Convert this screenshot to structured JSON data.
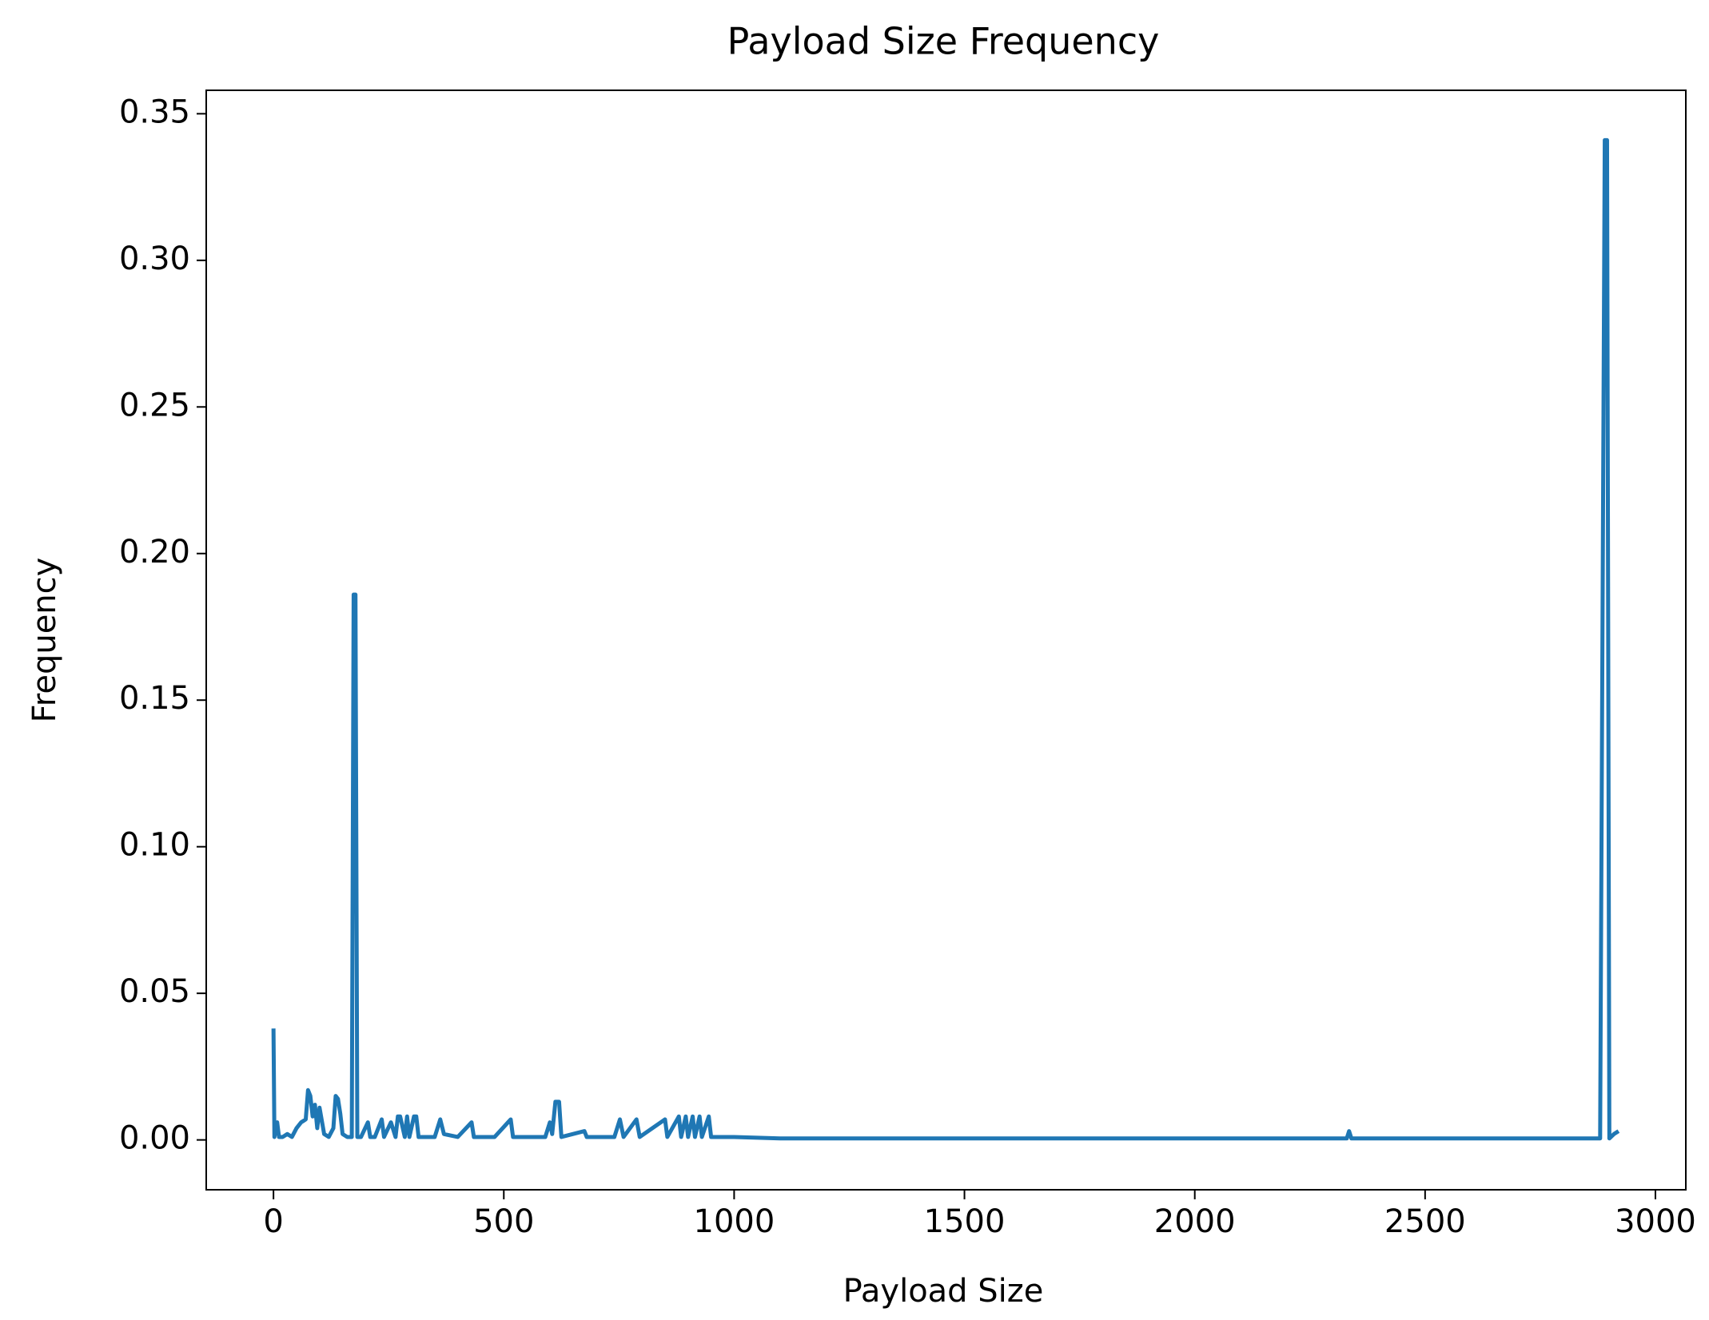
{
  "chart_data": {
    "type": "line",
    "title": "Payload Size Frequency",
    "x_label": "Payload Size",
    "y_label": "Frequency",
    "color": "#1f77b4",
    "grid": false,
    "xlim": [
      -146,
      3066
    ],
    "ylim": [
      -0.017,
      0.358
    ],
    "xticks": [
      0,
      500,
      1000,
      1500,
      2000,
      2500,
      3000
    ],
    "yticks": [
      {
        "value": 0,
        "label": "0.00"
      },
      {
        "value": 0.05,
        "label": "0.05"
      },
      {
        "value": 0.1,
        "label": "0.10"
      },
      {
        "value": 0.15,
        "label": "0.15"
      },
      {
        "value": 0.2,
        "label": "0.20"
      },
      {
        "value": 0.25,
        "label": "0.25"
      },
      {
        "value": 0.3,
        "label": "0.30"
      },
      {
        "value": 0.35,
        "label": "0.35"
      }
    ],
    "x": [
      0,
      2,
      8,
      12,
      20,
      30,
      40,
      50,
      60,
      70,
      75,
      80,
      85,
      90,
      95,
      100,
      110,
      120,
      130,
      135,
      140,
      145,
      150,
      160,
      170,
      174,
      178,
      182,
      190,
      205,
      210,
      220,
      235,
      240,
      255,
      265,
      270,
      275,
      285,
      290,
      295,
      305,
      310,
      315,
      350,
      362,
      370,
      400,
      430,
      435,
      480,
      515,
      520,
      590,
      600,
      605,
      612,
      620,
      625,
      675,
      680,
      740,
      752,
      760,
      788,
      795,
      850,
      855,
      880,
      885,
      895,
      900,
      910,
      915,
      925,
      930,
      945,
      950,
      1000,
      1100,
      1300,
      1500,
      1700,
      1900,
      2100,
      2330,
      2335,
      2340,
      2500,
      2700,
      2880,
      2890,
      2895,
      2900,
      2910,
      2920
    ],
    "values": [
      0.038,
      0.001,
      0.006,
      0.001,
      0.001,
      0.002,
      0.001,
      0.004,
      0.006,
      0.007,
      0.017,
      0.015,
      0.008,
      0.012,
      0.004,
      0.011,
      0.002,
      0.001,
      0.004,
      0.015,
      0.014,
      0.009,
      0.002,
      0.001,
      0.001,
      0.186,
      0.186,
      0.001,
      0.001,
      0.006,
      0.001,
      0.001,
      0.007,
      0.001,
      0.006,
      0.001,
      0.008,
      0.008,
      0.001,
      0.008,
      0.001,
      0.008,
      0.008,
      0.001,
      0.001,
      0.007,
      0.002,
      0.001,
      0.006,
      0.001,
      0.001,
      0.007,
      0.001,
      0.001,
      0.006,
      0.002,
      0.013,
      0.013,
      0.001,
      0.003,
      0.001,
      0.001,
      0.007,
      0.001,
      0.007,
      0.001,
      0.007,
      0.001,
      0.008,
      0.001,
      0.008,
      0.001,
      0.008,
      0.001,
      0.008,
      0.001,
      0.008,
      0.001,
      0.001,
      0.0005,
      0.0005,
      0.0005,
      0.0005,
      0.0005,
      0.0005,
      0.0005,
      0.003,
      0.0005,
      0.0005,
      0.0005,
      0.0005,
      0.341,
      0.341,
      0.0005,
      0.002,
      0.003
    ]
  }
}
